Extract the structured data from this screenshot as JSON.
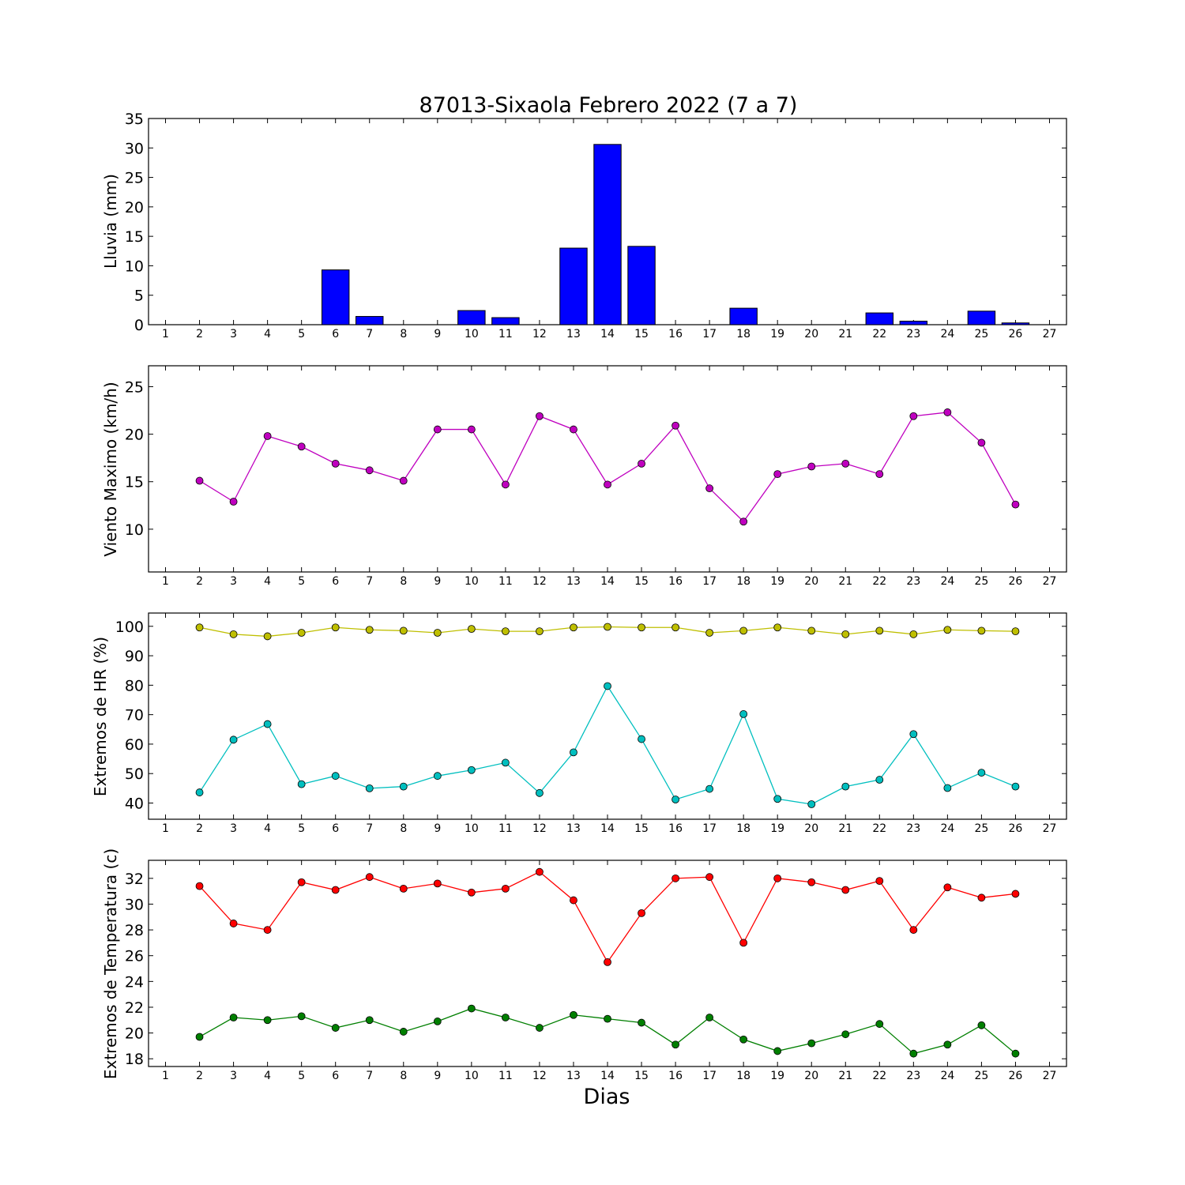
{
  "title": "87013-Sixaola Febrero 2022  (7 a 7)",
  "xlabel": "Dias",
  "chart_data": [
    {
      "type": "bar",
      "ylabel": "Lluvia (mm)",
      "xlim": [
        0.5,
        27.5
      ],
      "ylim": [
        0,
        35
      ],
      "yticks": [
        0,
        5,
        10,
        15,
        20,
        25,
        30,
        35
      ],
      "xticks": [
        1,
        2,
        3,
        4,
        5,
        6,
        7,
        8,
        9,
        10,
        11,
        12,
        13,
        14,
        15,
        16,
        17,
        18,
        19,
        20,
        21,
        22,
        23,
        24,
        25,
        26,
        27
      ],
      "grid": false,
      "series": [
        {
          "color": "#0000ff",
          "x": [
            1,
            2,
            3,
            4,
            5,
            6,
            7,
            8,
            9,
            10,
            11,
            12,
            13,
            14,
            15,
            16,
            17,
            18,
            19,
            20,
            21,
            22,
            23,
            24,
            25,
            26
          ],
          "values": [
            0,
            0,
            0,
            0,
            0,
            9.3,
            1.4,
            0,
            0,
            2.4,
            1.2,
            0,
            13.0,
            30.6,
            13.3,
            0,
            0,
            2.8,
            0,
            0,
            0,
            2.0,
            0.6,
            0,
            2.3,
            0.3
          ]
        }
      ]
    },
    {
      "type": "line",
      "ylabel": "Viento Maximo (km/h)",
      "xlim": [
        0.5,
        27.5
      ],
      "ylim": [
        5.5,
        27.2
      ],
      "yticks": [
        10,
        15,
        20,
        25
      ],
      "xticks": [
        1,
        2,
        3,
        4,
        5,
        6,
        7,
        8,
        9,
        10,
        11,
        12,
        13,
        14,
        15,
        16,
        17,
        18,
        19,
        20,
        21,
        22,
        23,
        24,
        25,
        26,
        27
      ],
      "grid": false,
      "series": [
        {
          "color": "#bf00bf",
          "x": [
            2,
            3,
            4,
            5,
            6,
            7,
            8,
            9,
            10,
            11,
            12,
            13,
            14,
            15,
            16,
            17,
            18,
            19,
            20,
            21,
            22,
            23,
            24,
            25,
            26
          ],
          "values": [
            15.1,
            12.9,
            19.8,
            18.7,
            16.9,
            16.2,
            15.1,
            20.5,
            20.5,
            14.7,
            21.9,
            20.5,
            14.7,
            16.9,
            20.9,
            14.3,
            10.8,
            15.8,
            16.6,
            16.9,
            15.8,
            21.9,
            22.3,
            19.1,
            12.6
          ]
        }
      ]
    },
    {
      "type": "line",
      "ylabel": "Extremos de HR (%)",
      "xlim": [
        0.5,
        27.5
      ],
      "ylim": [
        34.5,
        104.5
      ],
      "yticks": [
        40,
        50,
        60,
        70,
        80,
        90,
        100
      ],
      "xticks": [
        1,
        2,
        3,
        4,
        5,
        6,
        7,
        8,
        9,
        10,
        11,
        12,
        13,
        14,
        15,
        16,
        17,
        18,
        19,
        20,
        21,
        22,
        23,
        24,
        25,
        26,
        27
      ],
      "grid": false,
      "series": [
        {
          "color": "#bfbf00",
          "x": [
            2,
            3,
            4,
            5,
            6,
            7,
            8,
            9,
            10,
            11,
            12,
            13,
            14,
            15,
            16,
            17,
            18,
            19,
            20,
            21,
            22,
            23,
            24,
            25,
            26
          ],
          "values": [
            99.6,
            97.3,
            96.6,
            97.8,
            99.6,
            98.8,
            98.5,
            97.8,
            99.1,
            98.3,
            98.3,
            99.6,
            99.8,
            99.6,
            99.6,
            97.8,
            98.5,
            99.6,
            98.5,
            97.3,
            98.5,
            97.3,
            98.8,
            98.5,
            98.3
          ]
        },
        {
          "color": "#00bfbf",
          "x": [
            2,
            3,
            4,
            5,
            6,
            7,
            8,
            9,
            10,
            11,
            12,
            13,
            14,
            15,
            16,
            17,
            18,
            19,
            20,
            21,
            22,
            23,
            24,
            25,
            26
          ],
          "values": [
            43.6,
            61.5,
            66.8,
            46.4,
            49.2,
            45.0,
            45.6,
            49.2,
            51.2,
            53.7,
            43.4,
            57.2,
            79.7,
            61.7,
            41.2,
            44.8,
            70.2,
            41.4,
            39.6,
            45.6,
            47.9,
            63.4,
            45.1,
            50.3,
            45.6
          ]
        }
      ]
    },
    {
      "type": "line",
      "ylabel": "Extremos de Temperatura (c)",
      "xlim": [
        0.5,
        27.5
      ],
      "ylim": [
        17.4,
        33.4
      ],
      "yticks": [
        18,
        20,
        22,
        24,
        26,
        28,
        30,
        32
      ],
      "xticks": [
        1,
        2,
        3,
        4,
        5,
        6,
        7,
        8,
        9,
        10,
        11,
        12,
        13,
        14,
        15,
        16,
        17,
        18,
        19,
        20,
        21,
        22,
        23,
        24,
        25,
        26,
        27
      ],
      "grid": false,
      "series": [
        {
          "color": "#ff0000",
          "x": [
            2,
            3,
            4,
            5,
            6,
            7,
            8,
            9,
            10,
            11,
            12,
            13,
            14,
            15,
            16,
            17,
            18,
            19,
            20,
            21,
            22,
            23,
            24,
            25,
            26
          ],
          "values": [
            31.4,
            28.5,
            28.0,
            31.7,
            31.1,
            32.1,
            31.2,
            31.6,
            30.9,
            31.2,
            32.5,
            30.3,
            25.5,
            29.3,
            32.0,
            32.1,
            27.0,
            32.0,
            31.7,
            31.1,
            31.8,
            28.0,
            31.3,
            30.5,
            30.8
          ]
        },
        {
          "color": "#007f00",
          "x": [
            2,
            3,
            4,
            5,
            6,
            7,
            8,
            9,
            10,
            11,
            12,
            13,
            14,
            15,
            16,
            17,
            18,
            19,
            20,
            21,
            22,
            23,
            24,
            25,
            26
          ],
          "values": [
            19.7,
            21.2,
            21.0,
            21.3,
            20.4,
            21.0,
            20.1,
            20.9,
            21.9,
            21.2,
            20.4,
            21.4,
            21.1,
            20.8,
            19.1,
            21.2,
            19.5,
            18.6,
            19.2,
            19.9,
            20.7,
            18.4,
            19.1,
            20.6,
            18.4
          ]
        }
      ]
    }
  ]
}
